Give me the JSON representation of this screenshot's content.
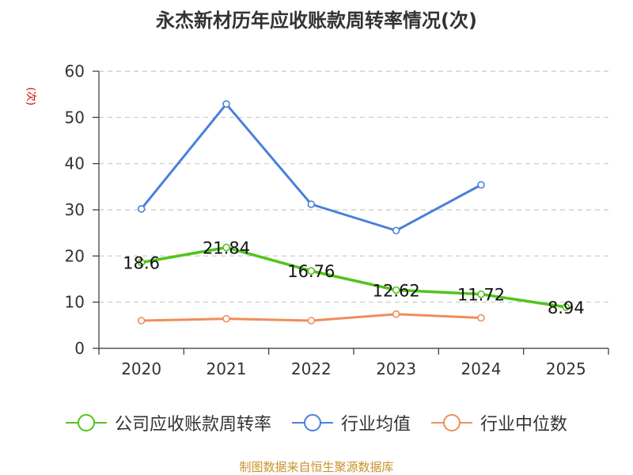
{
  "chart_data": {
    "type": "line",
    "title": "永杰新材历年应收账款周转率情况(次)",
    "ylabel": "(次)",
    "xlabel": "",
    "categories": [
      "2020",
      "2021",
      "2022",
      "2023",
      "2024",
      "2025"
    ],
    "ylim": [
      0,
      60
    ],
    "yticks": [
      0,
      10,
      20,
      30,
      40,
      50,
      60
    ],
    "grid": true,
    "legend_position": "bottom",
    "series": [
      {
        "name": "公司应收账款周转率",
        "color": "#52c41a",
        "values": [
          18.6,
          21.84,
          16.76,
          12.62,
          11.72,
          8.94
        ],
        "labels": [
          "18.6",
          "21.84",
          "16.76",
          "12.62",
          "11.72",
          "8.94"
        ]
      },
      {
        "name": "行业均值",
        "color": "#4a7fdc",
        "values": [
          30.2,
          52.9,
          31.2,
          25.5,
          35.4,
          null
        ]
      },
      {
        "name": "行业中位数",
        "color": "#f28c5a",
        "values": [
          6.0,
          6.4,
          6.0,
          7.4,
          6.6,
          null
        ]
      }
    ]
  },
  "source": "制图数据来自恒生聚源数据库"
}
